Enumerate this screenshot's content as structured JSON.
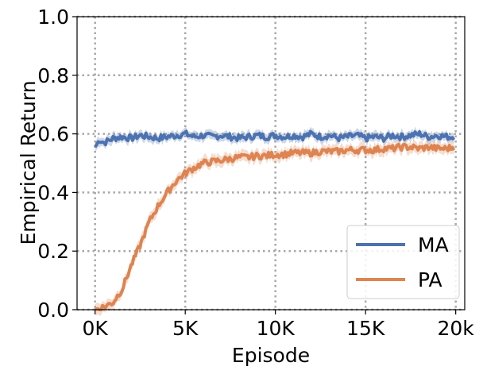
{
  "chart_data": {
    "type": "line",
    "title": "",
    "xlabel": "Episode",
    "ylabel": "Empirical Return",
    "xlim": [
      -1000,
      20500
    ],
    "ylim": [
      0.0,
      1.0
    ],
    "x_ticks": [
      0,
      5000,
      10000,
      15000,
      20000
    ],
    "x_tick_labels": [
      "0K",
      "5K",
      "10K",
      "15K",
      "20k"
    ],
    "y_ticks": [
      0.0,
      0.2,
      0.4,
      0.6,
      0.8,
      1.0
    ],
    "y_tick_labels": [
      "0.0",
      "0.2",
      "0.4",
      "0.6",
      "0.8",
      "1.0"
    ],
    "grid": true,
    "legend_position": "lower-right",
    "series": [
      {
        "name": "MA",
        "color": "#4c72b0",
        "x": [
          0,
          250,
          500,
          1000,
          1500,
          2000,
          2500,
          3000,
          3500,
          4000,
          4500,
          5000,
          5500,
          6000,
          6500,
          7000,
          7500,
          8000,
          8500,
          9000,
          9500,
          10000,
          10500,
          11000,
          11500,
          12000,
          12500,
          13000,
          13500,
          14000,
          14500,
          15000,
          15500,
          16000,
          16500,
          17000,
          17500,
          18000,
          18500,
          19000,
          19500,
          19900
        ],
        "y": [
          0.555,
          0.58,
          0.57,
          0.585,
          0.59,
          0.585,
          0.595,
          0.59,
          0.585,
          0.59,
          0.595,
          0.6,
          0.59,
          0.595,
          0.59,
          0.595,
          0.59,
          0.585,
          0.59,
          0.595,
          0.59,
          0.595,
          0.59,
          0.595,
          0.59,
          0.6,
          0.59,
          0.595,
          0.585,
          0.59,
          0.595,
          0.585,
          0.59,
          0.585,
          0.595,
          0.59,
          0.595,
          0.6,
          0.59,
          0.595,
          0.59,
          0.59
        ],
        "band": 0.012
      },
      {
        "name": "PA",
        "color": "#dd8452",
        "x": [
          0,
          250,
          500,
          1000,
          1500,
          2000,
          2500,
          3000,
          3500,
          4000,
          4500,
          5000,
          5500,
          6000,
          6500,
          7000,
          7500,
          8000,
          8500,
          9000,
          9500,
          10000,
          10500,
          11000,
          11500,
          12000,
          12500,
          13000,
          13500,
          14000,
          14500,
          15000,
          15500,
          16000,
          16500,
          17000,
          17500,
          18000,
          18500,
          19000,
          19500,
          19900
        ],
        "y": [
          0.0,
          0.005,
          0.01,
          0.025,
          0.07,
          0.15,
          0.22,
          0.3,
          0.355,
          0.4,
          0.44,
          0.465,
          0.485,
          0.5,
          0.505,
          0.51,
          0.515,
          0.52,
          0.52,
          0.525,
          0.525,
          0.53,
          0.53,
          0.535,
          0.535,
          0.535,
          0.54,
          0.54,
          0.54,
          0.545,
          0.545,
          0.545,
          0.545,
          0.55,
          0.55,
          0.555,
          0.555,
          0.55,
          0.555,
          0.55,
          0.55,
          0.555
        ],
        "band": 0.015
      }
    ]
  }
}
